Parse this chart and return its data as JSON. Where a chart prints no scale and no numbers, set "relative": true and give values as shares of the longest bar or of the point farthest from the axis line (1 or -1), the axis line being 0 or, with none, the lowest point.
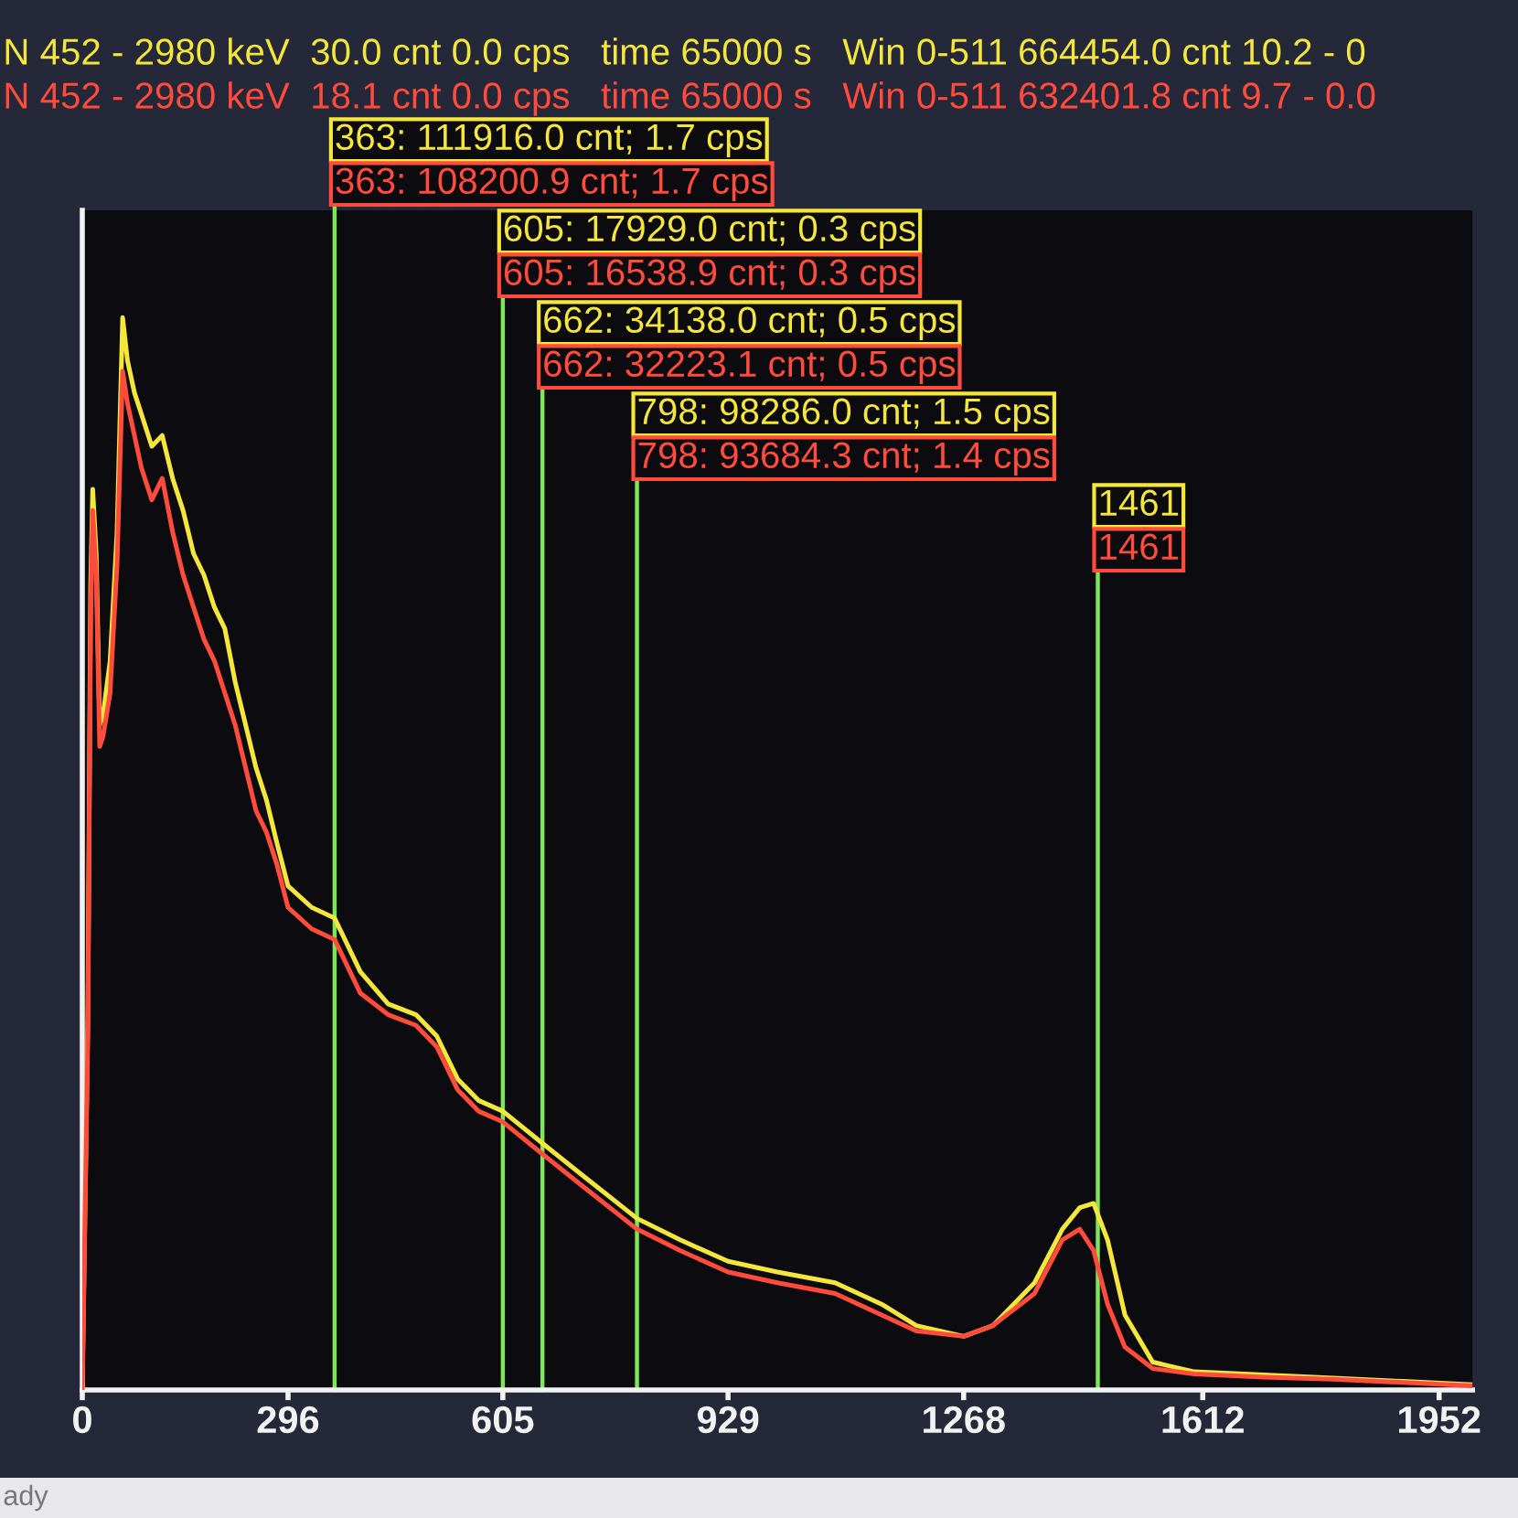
{
  "chart_data": {
    "type": "line",
    "relative": true,
    "x": [
      0,
      8,
      12,
      15,
      20,
      25,
      30,
      40,
      50,
      58,
      65,
      75,
      85,
      100,
      115,
      130,
      145,
      160,
      175,
      190,
      205,
      220,
      235,
      250,
      265,
      280,
      296,
      330,
      363,
      400,
      440,
      480,
      510,
      540,
      570,
      605,
      662,
      720,
      798,
      860,
      929,
      1000,
      1083,
      1150,
      1200,
      1268,
      1310,
      1370,
      1410,
      1435,
      1455,
      1475,
      1500,
      1540,
      1600,
      1700,
      1800,
      1900,
      1997
    ],
    "series": [
      {
        "color": "#f5e63c",
        "values": [
          0,
          0.35,
          0.75,
          0.84,
          0.78,
          0.62,
          0.63,
          0.68,
          0.8,
          1.0,
          0.96,
          0.93,
          0.91,
          0.88,
          0.89,
          0.85,
          0.82,
          0.78,
          0.76,
          0.73,
          0.71,
          0.66,
          0.62,
          0.58,
          0.55,
          0.51,
          0.47,
          0.45,
          0.44,
          0.39,
          0.36,
          0.35,
          0.33,
          0.29,
          0.27,
          0.26,
          0.23,
          0.2,
          0.16,
          0.14,
          0.12,
          0.11,
          0.1,
          0.08,
          0.06,
          0.05,
          0.06,
          0.1,
          0.15,
          0.17,
          0.174,
          0.14,
          0.07,
          0.026,
          0.017,
          0.014,
          0.011,
          0.008,
          0.005
        ]
      },
      {
        "color": "#ff4b3c",
        "values": [
          0,
          0.33,
          0.72,
          0.82,
          0.76,
          0.6,
          0.61,
          0.65,
          0.77,
          0.95,
          0.92,
          0.89,
          0.86,
          0.83,
          0.85,
          0.8,
          0.76,
          0.73,
          0.7,
          0.68,
          0.65,
          0.62,
          0.58,
          0.54,
          0.52,
          0.49,
          0.45,
          0.43,
          0.42,
          0.37,
          0.35,
          0.34,
          0.32,
          0.28,
          0.26,
          0.25,
          0.22,
          0.19,
          0.15,
          0.13,
          0.11,
          0.1,
          0.09,
          0.07,
          0.055,
          0.05,
          0.06,
          0.09,
          0.14,
          0.15,
          0.13,
          0.08,
          0.04,
          0.02,
          0.015,
          0.012,
          0.01,
          0.007,
          0.004
        ]
      }
    ],
    "xlim": [
      0,
      2000
    ],
    "xticks": [
      0,
      296,
      605,
      929,
      1268,
      1612,
      1952
    ],
    "ref_lines": [
      {
        "axis": "x",
        "value": 363,
        "label": "363: 111916.0 cnt; 1.7 cps",
        "color": "#7ee65a"
      },
      {
        "axis": "x",
        "value": 605,
        "label": "605: 17929.0 cnt; 0.3 cps",
        "color": "#7ee65a"
      },
      {
        "axis": "x",
        "value": 662,
        "label": "662: 34138.0 cnt; 0.5 cps",
        "color": "#7ee65a"
      },
      {
        "axis": "x",
        "value": 798,
        "label": "798: 98286.0 cnt; 1.5 cps",
        "color": "#7ee65a"
      },
      {
        "axis": "x",
        "value": 1461,
        "label": "1461",
        "color": "#7ee65a"
      }
    ],
    "annotations": [
      "N 452 - 2980 keV  30.0 cnt 0.0 cps   time 65000 s   Win 0-511 664454.0 cnt 10.2 - 0",
      "N 452 - 2980 keV  18.1 cnt 0.0 cps   time 65000 s   Win 0-511 632401.8 cnt 9.7 - 0.0",
      "363: 108200.9 cnt; 1.7 cps",
      "605: 16538.9 cnt; 0.3 cps",
      "662: 32223.1 cnt; 0.5 cps",
      "798: 93684.3 cnt; 1.4 cps",
      "1461",
      "ady"
    ]
  }
}
